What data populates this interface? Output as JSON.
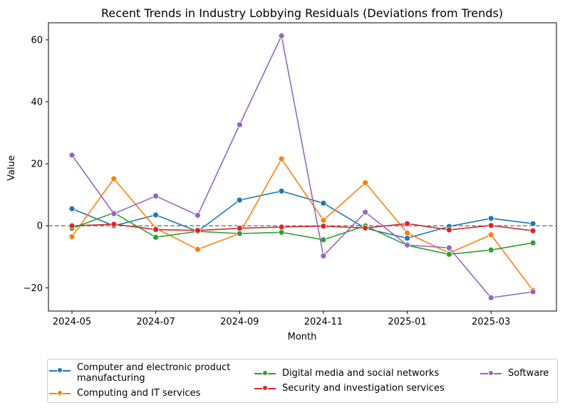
{
  "chart_data": {
    "type": "line",
    "title": "Recent Trends in Industry Lobbying Residuals (Deviations from Trends)",
    "xlabel": "Month",
    "ylabel": "Value",
    "x": [
      "2024-05",
      "2024-06",
      "2024-07",
      "2024-08",
      "2024-09",
      "2024-10",
      "2024-11",
      "2024-12",
      "2025-01",
      "2025-02",
      "2025-03",
      "2025-04"
    ],
    "xticks": [
      "2024-05",
      "2024-07",
      "2024-09",
      "2024-11",
      "2025-01",
      "2025-03"
    ],
    "yticks": [
      -20,
      0,
      20,
      40,
      60
    ],
    "ytick_labels": [
      "−20",
      "0",
      "20",
      "40",
      "60"
    ],
    "ylim": [
      -27.5,
      65.5
    ],
    "reference_line": 0,
    "legend_placement": "bottom-center",
    "series": [
      {
        "name": "Computer and electronic product\nmanufacturing",
        "color": "#1f77b4",
        "values": [
          5.5,
          0.0,
          3.5,
          -1.8,
          8.3,
          11.2,
          7.3,
          -0.8,
          -4.0,
          -0.2,
          2.4,
          0.7
        ]
      },
      {
        "name": "Computing and IT services",
        "color": "#ff7f0e",
        "values": [
          -3.5,
          15.2,
          -0.8,
          -7.6,
          -2.5,
          21.6,
          1.8,
          13.9,
          -2.3,
          -8.8,
          -2.9,
          -20.8
        ]
      },
      {
        "name": "Digital media and social networks",
        "color": "#2ca02c",
        "values": [
          -0.8,
          4.2,
          -3.7,
          -1.8,
          -2.5,
          -2.1,
          -4.5,
          0.0,
          -6.3,
          -9.2,
          -7.8,
          -5.5
        ]
      },
      {
        "name": "Security and investigation services",
        "color": "#d62728",
        "values": [
          0.0,
          0.5,
          -1.2,
          -1.5,
          -0.8,
          -0.4,
          -0.1,
          -0.7,
          0.7,
          -1.3,
          0.1,
          -1.6
        ]
      },
      {
        "name": "Software",
        "color": "#9467bd",
        "values": [
          22.8,
          3.9,
          9.6,
          3.4,
          32.6,
          61.3,
          -9.7,
          4.4,
          -6.2,
          -7.1,
          -23.2,
          -21.3
        ]
      }
    ]
  }
}
